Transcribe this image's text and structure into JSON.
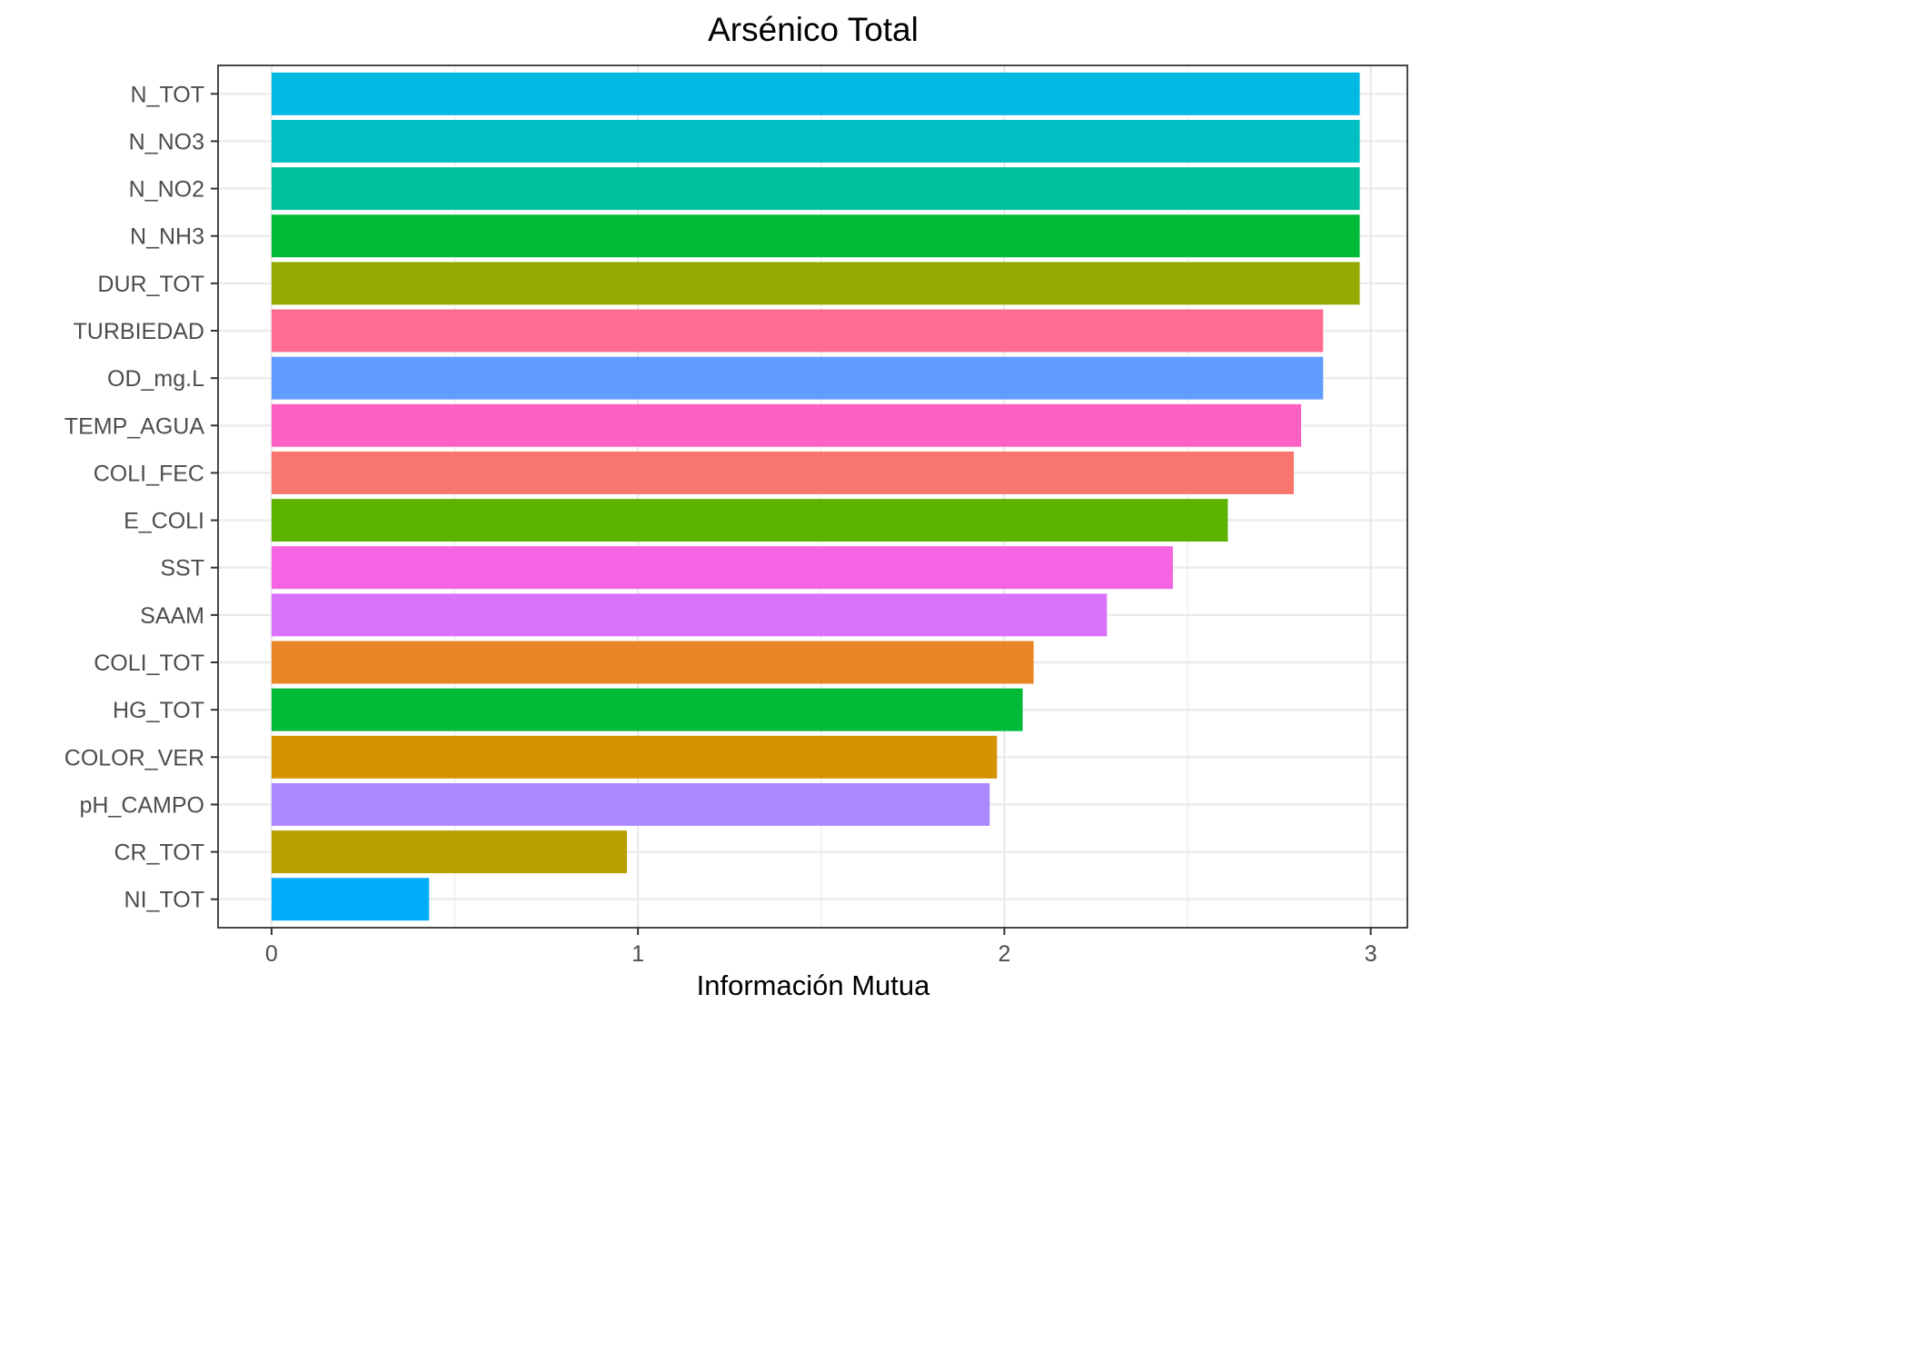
{
  "chart_data": {
    "type": "bar",
    "orientation": "horizontal",
    "title": "Arsénico Total",
    "xlabel": "Información Mutua",
    "ylabel": "",
    "xlim": [
      -0.146,
      3.1
    ],
    "x_ticks": [
      0,
      1,
      2,
      3
    ],
    "x_tick_labels": [
      "0",
      "1",
      "2",
      "3"
    ],
    "grid": true,
    "legend": "none",
    "categories": [
      "N_TOT",
      "N_NO3",
      "N_NO2",
      "N_NH3",
      "DUR_TOT",
      "TURBIEDAD",
      "OD_mg.L",
      "TEMP_AGUA",
      "COLI_FEC",
      "E_COLI",
      "SST",
      "SAAM",
      "COLI_TOT",
      "HG_TOT",
      "COLOR_VER",
      "pH_CAMPO",
      "CR_TOT",
      "NI_TOT"
    ],
    "values": [
      2.97,
      2.97,
      2.97,
      2.97,
      2.97,
      2.87,
      2.87,
      2.81,
      2.79,
      2.61,
      2.46,
      2.28,
      2.08,
      2.05,
      1.98,
      1.96,
      0.97,
      0.43
    ],
    "colors": [
      "#00B9E3",
      "#00BFC4",
      "#00C19F",
      "#00BA38",
      "#93AA00",
      "#FF6C91",
      "#619CFF",
      "#FF61C3",
      "#F8766D",
      "#5BB300",
      "#F564E3",
      "#DB72FB",
      "#E88526",
      "#00BA38",
      "#D39200",
      "#AC88FF",
      "#B8A000",
      "#00ADFA"
    ]
  }
}
